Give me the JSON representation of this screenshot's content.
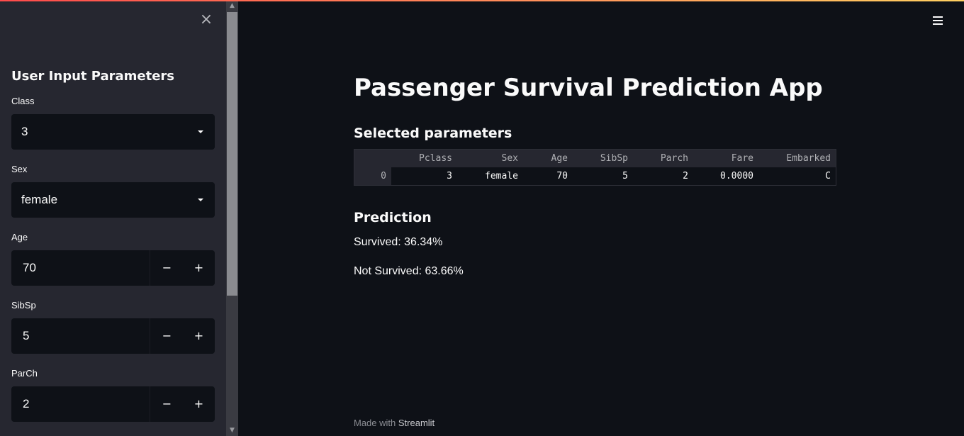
{
  "sidebar": {
    "heading": "User Input Parameters",
    "close_glyph": "×",
    "fields": [
      {
        "label": "Class",
        "type": "select",
        "value": "3"
      },
      {
        "label": "Sex",
        "type": "select",
        "value": "female"
      },
      {
        "label": "Age",
        "type": "number",
        "value": "70"
      },
      {
        "label": "SibSp",
        "type": "number",
        "value": "5"
      },
      {
        "label": "ParCh",
        "type": "number",
        "value": "2"
      }
    ],
    "stepper": {
      "minus": "−",
      "plus": "+"
    }
  },
  "icons": {
    "close": "close-icon",
    "caret": "chevron-down-icon",
    "menu": "hamburger-menu-icon"
  },
  "main": {
    "title": "Passenger Survival Prediction App",
    "params_heading": "Selected parameters",
    "table": {
      "columns": [
        "",
        "Pclass",
        "Sex",
        "Age",
        "SibSp",
        "Parch",
        "Fare",
        "Embarked"
      ],
      "rows": [
        [
          "0",
          "3",
          "female",
          "70",
          "5",
          "2",
          "0.0000",
          "C"
        ]
      ]
    },
    "prediction_heading": "Prediction",
    "survived": "Survived: 36.34%",
    "not_survived": "Not Survived: 63.66%"
  },
  "footer": {
    "prefix": "Made with ",
    "brand": "Streamlit"
  },
  "colors": {
    "background": "#0e1117",
    "sidebar": "#262730",
    "accent_gradient_start": "#ff4b4b",
    "accent_gradient_end": "#ffd060"
  }
}
